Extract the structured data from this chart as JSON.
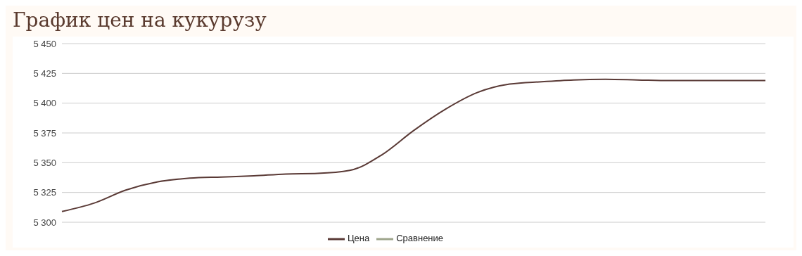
{
  "chart_data": {
    "type": "line",
    "title": "График цен на кукурузу",
    "categories": [
      null,
      null,
      null,
      null,
      null,
      null,
      null,
      null,
      null,
      null,
      null,
      null,
      null,
      null,
      null,
      null,
      null,
      null,
      null,
      null,
      null,
      null,
      null
    ],
    "series": [
      {
        "name": "Цена",
        "color": "#5a3a36",
        "values": [
          5309,
          5316,
          5327,
          5334,
          5337,
          5338,
          5339,
          5340.5,
          5341,
          5343.5,
          5356.5,
          5377,
          5395,
          5409,
          5416,
          5418,
          5419.5,
          5420,
          5419.5,
          5419,
          5419,
          5419,
          5419
        ]
      },
      {
        "name": "Сравнение",
        "color": "#9ea58c",
        "values": [
          null,
          null,
          null,
          null,
          null,
          null,
          null,
          null,
          null,
          null,
          null,
          null,
          null,
          null,
          null,
          null,
          null,
          null,
          null,
          null,
          null,
          null,
          null
        ]
      }
    ],
    "ylim": [
      5300,
      5450
    ],
    "yticks": [
      5300,
      5325,
      5350,
      5375,
      5400,
      5425,
      5450
    ],
    "grid": "y",
    "legend": "bottom",
    "marker": "none",
    "line_style": "solid"
  }
}
